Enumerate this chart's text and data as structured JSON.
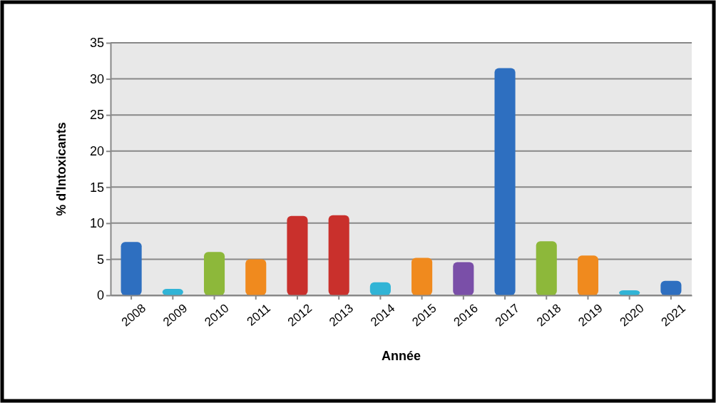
{
  "chart_data": {
    "type": "bar",
    "xlabel": "Année",
    "ylabel": "% d'Intoxicants",
    "categories": [
      "2008",
      "2009",
      "2010",
      "2011",
      "2012",
      "2013",
      "2014",
      "2015",
      "2016",
      "2017",
      "2018",
      "2019",
      "2020",
      "2021"
    ],
    "values": [
      7.4,
      0.9,
      6,
      5,
      11,
      11.1,
      1.8,
      5.2,
      4.6,
      31.5,
      7.5,
      5.5,
      0.7,
      2
    ],
    "colors": [
      "#2e6fc0",
      "#31b4d6",
      "#8db83a",
      "#f08a1e",
      "#c9302c",
      "#c9302c",
      "#31b4d6",
      "#f08a1e",
      "#7a4fa8",
      "#2e6fc0",
      "#8db83a",
      "#f08a1e",
      "#31b4d6",
      "#2e6fc0"
    ],
    "ylim": [
      0,
      35
    ],
    "yticks": [
      0,
      5,
      10,
      15,
      20,
      25,
      30,
      35
    ],
    "grid": "y"
  }
}
